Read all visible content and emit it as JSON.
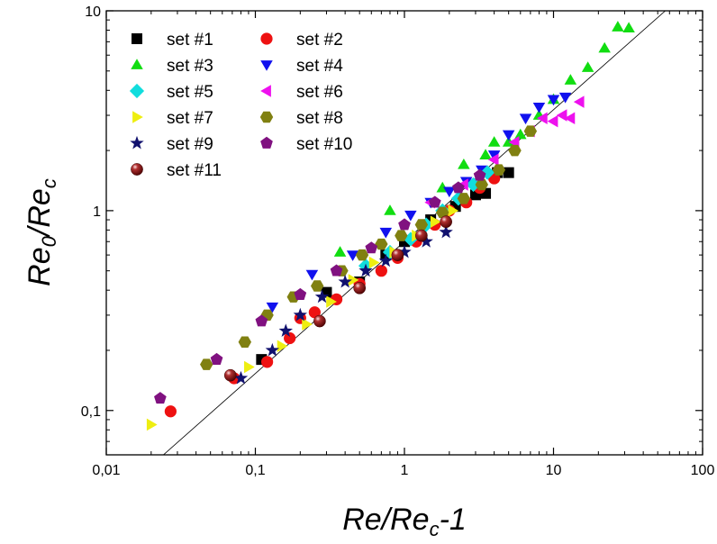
{
  "chart_data": {
    "type": "scatter",
    "x_scale": "log",
    "y_scale": "log",
    "xlim": [
      0.01,
      100
    ],
    "ylim": [
      0.06,
      10
    ],
    "xlabel": "Re/Re_c-1",
    "ylabel": "Re_0/Re_c",
    "x_ticks": [
      {
        "value": 0.01,
        "label": "0,01"
      },
      {
        "value": 0.1,
        "label": "0,1"
      },
      {
        "value": 1,
        "label": "1"
      },
      {
        "value": 10,
        "label": "10"
      },
      {
        "value": 100,
        "label": "100"
      }
    ],
    "y_ticks": [
      {
        "value": 0.1,
        "label": "0,1"
      },
      {
        "value": 1,
        "label": "1"
      },
      {
        "value": 10,
        "label": "10"
      }
    ],
    "grid": false,
    "legend_position": "top-left",
    "reference_line": {
      "slope": 0.66,
      "anchor": [
        1,
        0.7
      ],
      "color": "#000000"
    },
    "series": [
      {
        "name": "set #1",
        "marker": "square",
        "color": "#000000",
        "x": [
          0.11,
          0.3,
          0.5,
          0.75,
          1.0,
          1.5,
          2.2,
          3.0,
          3.5,
          4.2,
          5.0
        ],
        "y": [
          0.18,
          0.39,
          0.44,
          0.6,
          0.7,
          0.9,
          1.05,
          1.2,
          1.22,
          1.55,
          1.55
        ]
      },
      {
        "name": "set #2",
        "marker": "circle",
        "color": "#ee1111",
        "x": [
          0.027,
          0.072,
          0.12,
          0.17,
          0.2,
          0.25,
          0.35,
          0.5,
          0.7,
          0.9,
          1.2,
          1.6,
          2.0,
          2.6,
          3.2,
          4.0
        ],
        "y": [
          0.099,
          0.145,
          0.175,
          0.23,
          0.29,
          0.31,
          0.36,
          0.43,
          0.5,
          0.58,
          0.7,
          0.85,
          1.0,
          1.1,
          1.3,
          1.45
        ]
      },
      {
        "name": "set #3",
        "marker": "triangle-up",
        "color": "#11dd11",
        "x": [
          0.37,
          0.8,
          1.8,
          2.5,
          3.5,
          4.0,
          5.0,
          6.0,
          8.0,
          10.0,
          13.0,
          17.0,
          22.0,
          27.0,
          32.0
        ],
        "y": [
          0.62,
          1.0,
          1.3,
          1.7,
          1.9,
          2.2,
          2.2,
          2.4,
          3.0,
          3.6,
          4.5,
          5.2,
          6.5,
          8.3,
          8.2
        ]
      },
      {
        "name": "set #4",
        "marker": "triangle-down",
        "color": "#1111ee",
        "x": [
          0.13,
          0.24,
          0.45,
          0.75,
          1.1,
          1.5,
          2.0,
          2.6,
          3.3,
          4.0,
          5.0,
          6.5,
          8.0,
          10.0,
          12.0
        ],
        "y": [
          0.33,
          0.48,
          0.6,
          0.78,
          0.95,
          1.1,
          1.25,
          1.4,
          1.6,
          1.9,
          2.4,
          2.9,
          3.3,
          3.6,
          3.7
        ]
      },
      {
        "name": "set #5",
        "marker": "diamond",
        "color": "#11dddd",
        "x": [
          0.55,
          0.8,
          1.1,
          1.4,
          1.8,
          2.3,
          2.9,
          3.6
        ],
        "y": [
          0.53,
          0.62,
          0.72,
          0.85,
          1.0,
          1.15,
          1.35,
          1.55
        ]
      },
      {
        "name": "set #6",
        "marker": "triangle-left",
        "color": "#ee11ee",
        "x": [
          1.5,
          2.5,
          4.0,
          5.5,
          7.0,
          8.5,
          10.0,
          11.5,
          13.0,
          15.0
        ],
        "y": [
          1.1,
          1.35,
          1.8,
          2.2,
          2.5,
          2.9,
          2.8,
          3.0,
          2.9,
          3.5
        ]
      },
      {
        "name": "set #7",
        "marker": "triangle-right",
        "color": "#eeee11",
        "x": [
          0.02,
          0.09,
          0.15,
          0.22,
          0.32,
          0.45,
          0.62,
          0.85,
          1.2,
          1.6,
          2.1
        ],
        "y": [
          0.085,
          0.165,
          0.21,
          0.27,
          0.35,
          0.45,
          0.55,
          0.62,
          0.75,
          0.88,
          1.0
        ]
      },
      {
        "name": "set #8",
        "marker": "hexagon",
        "color": "#808011",
        "x": [
          0.047,
          0.085,
          0.12,
          0.18,
          0.26,
          0.38,
          0.52,
          0.7,
          0.95,
          1.3,
          1.8,
          2.5,
          3.3,
          4.3,
          5.5,
          7.0
        ],
        "y": [
          0.17,
          0.22,
          0.3,
          0.37,
          0.42,
          0.5,
          0.6,
          0.68,
          0.75,
          0.85,
          0.98,
          1.15,
          1.35,
          1.6,
          2.0,
          2.5
        ]
      },
      {
        "name": "set #9",
        "marker": "star",
        "color": "#11116e",
        "x": [
          0.08,
          0.13,
          0.16,
          0.2,
          0.28,
          0.4,
          0.55,
          0.75,
          1.0,
          1.4,
          1.9
        ],
        "y": [
          0.145,
          0.2,
          0.25,
          0.3,
          0.37,
          0.44,
          0.5,
          0.56,
          0.62,
          0.7,
          0.78
        ]
      },
      {
        "name": "set #10",
        "marker": "pentagon",
        "color": "#801180",
        "x": [
          0.023,
          0.055,
          0.11,
          0.2,
          0.35,
          0.6,
          1.0,
          1.6,
          2.3,
          3.2
        ],
        "y": [
          0.115,
          0.18,
          0.28,
          0.38,
          0.5,
          0.65,
          0.85,
          1.1,
          1.3,
          1.5
        ]
      },
      {
        "name": "set #11",
        "marker": "sphere",
        "color": "#7a1111",
        "x": [
          0.068,
          0.27,
          0.5,
          0.9,
          1.3,
          1.9
        ],
        "y": [
          0.15,
          0.28,
          0.41,
          0.6,
          0.75,
          0.88
        ]
      }
    ]
  }
}
